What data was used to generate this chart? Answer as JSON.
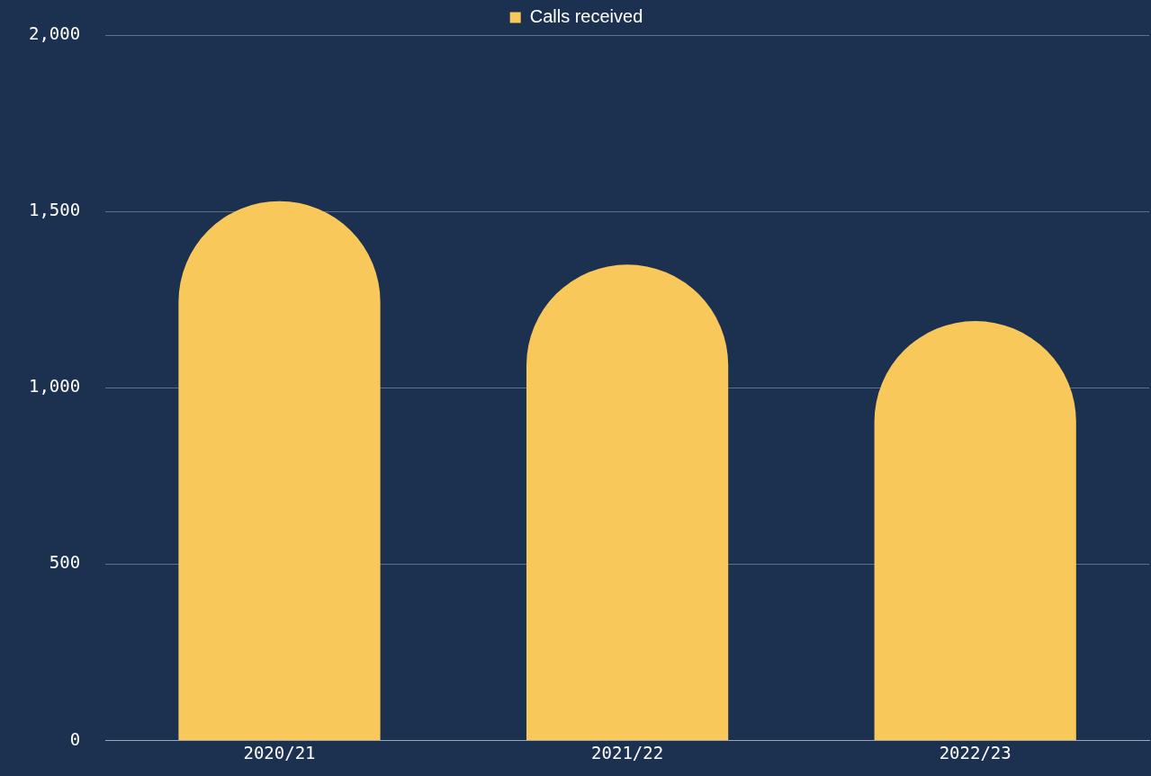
{
  "chart_data": {
    "type": "bar",
    "categories": [
      "2020/21",
      "2021/22",
      "2022/23"
    ],
    "series": [
      {
        "name": "Calls received",
        "color": "#f9c85a",
        "values": [
          1530,
          1350,
          1190
        ]
      }
    ],
    "ylim": [
      0,
      2000
    ],
    "yticks": [
      0,
      500,
      {
        "value": 1000,
        "label": "1,000"
      },
      {
        "value": 1500,
        "label": "1,500"
      },
      {
        "value": 2000,
        "label": "2,000"
      }
    ],
    "grid": "y",
    "legend": "top"
  }
}
